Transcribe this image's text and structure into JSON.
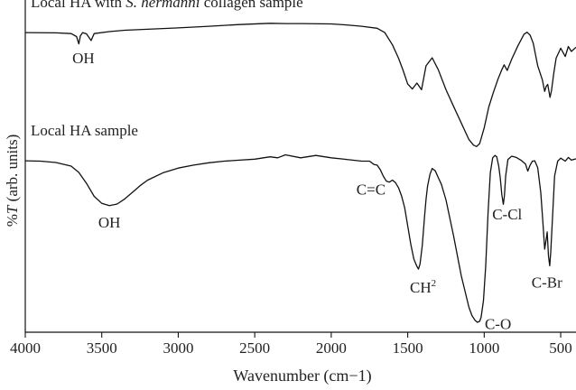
{
  "chart_data": {
    "type": "line",
    "title": "",
    "xlabel": "Wavenumber (cm−1)",
    "ylabel": "%T (arb. units)",
    "ylabel_prefix": "%",
    "ylabel_symbol": "T",
    "ylabel_suffix": " (arb. units)",
    "xlim": [
      4000,
      400
    ],
    "x_reversed": true,
    "x_ticks": [
      4000,
      3500,
      3000,
      2500,
      2000,
      1500,
      1000,
      500
    ],
    "y_ticks_shown": false,
    "grid": false,
    "ylim": [
      0,
      100
    ],
    "series": [
      {
        "name": "Local HA with S. hermanni collagen sample",
        "name_prefix": "Local HA with ",
        "name_italic": "S. hermanni",
        "name_suffix": " collagen sample",
        "x": [
          4000,
          3800,
          3700,
          3665,
          3650,
          3640,
          3625,
          3600,
          3570,
          3550,
          3450,
          3350,
          3200,
          3000,
          2800,
          2600,
          2400,
          2300,
          2200,
          2000,
          1900,
          1800,
          1700,
          1650,
          1600,
          1560,
          1530,
          1500,
          1470,
          1440,
          1410,
          1380,
          1340,
          1300,
          1250,
          1200,
          1150,
          1100,
          1070,
          1050,
          1030,
          1000,
          970,
          940,
          910,
          885,
          870,
          850,
          820,
          780,
          740,
          720,
          700,
          680,
          650,
          620,
          605,
          595,
          585,
          570,
          560,
          545,
          530,
          500,
          470,
          450,
          430,
          400
        ],
        "y": [
          90.2,
          90.1,
          89.9,
          89.0,
          86.8,
          89.2,
          90.2,
          89.8,
          87.8,
          89.9,
          90.5,
          90.9,
          91.2,
          91.6,
          92.1,
          92.6,
          93.0,
          92.9,
          92.9,
          92.8,
          92.5,
          92.1,
          91.5,
          90.2,
          86.5,
          82.5,
          78.8,
          74.7,
          73.2,
          75.0,
          73.0,
          80.2,
          82.6,
          79.0,
          73.0,
          68.0,
          63.0,
          58.0,
          56.3,
          55.9,
          56.8,
          61.5,
          67.8,
          72.2,
          76.2,
          79.0,
          80.5,
          78.8,
          82.2,
          86.2,
          89.7,
          90.3,
          89.4,
          87.0,
          80.2,
          76.0,
          72.5,
          74.0,
          74.6,
          70.7,
          72.8,
          78.0,
          82.5,
          85.5,
          83.0,
          86.0,
          84.5,
          85.8
        ]
      },
      {
        "name": "Local HA sample",
        "x": [
          4000,
          3900,
          3800,
          3700,
          3650,
          3600,
          3550,
          3500,
          3450,
          3400,
          3350,
          3300,
          3250,
          3200,
          3100,
          3000,
          2900,
          2800,
          2700,
          2600,
          2500,
          2400,
          2350,
          2300,
          2200,
          2100,
          2000,
          1900,
          1800,
          1750,
          1720,
          1700,
          1680,
          1660,
          1640,
          1620,
          1600,
          1580,
          1560,
          1540,
          1520,
          1500,
          1480,
          1460,
          1440,
          1430,
          1420,
          1405,
          1390,
          1380,
          1370,
          1355,
          1340,
          1320,
          1300,
          1280,
          1250,
          1200,
          1150,
          1100,
          1080,
          1060,
          1045,
          1030,
          1020,
          1005,
          990,
          975,
          960,
          945,
          930,
          918,
          905,
          895,
          885,
          875,
          868,
          860,
          845,
          820,
          790,
          760,
          730,
          715,
          700,
          685,
          670,
          650,
          630,
          615,
          605,
          595,
          588,
          580,
          572,
          565,
          555,
          540,
          520,
          500,
          470,
          450,
          430,
          400
        ],
        "y": [
          51.6,
          51.5,
          51.1,
          50.0,
          48.1,
          44.8,
          40.9,
          38.8,
          38.1,
          38.6,
          40.1,
          42.1,
          44.1,
          45.8,
          48.0,
          49.4,
          50.3,
          51.0,
          51.5,
          51.8,
          52.1,
          52.8,
          52.5,
          53.4,
          52.5,
          53.2,
          52.5,
          52.0,
          51.5,
          51.5,
          50.5,
          50.3,
          49.0,
          47.0,
          45.5,
          45.2,
          45.8,
          45.0,
          43.5,
          41.0,
          37.5,
          32.0,
          26.5,
          22.0,
          19.8,
          19.0,
          20.5,
          26.0,
          35.0,
          40.0,
          44.0,
          47.5,
          49.3,
          48.6,
          46.5,
          44.5,
          39.8,
          29.0,
          17.0,
          7.5,
          5.0,
          3.6,
          3.0,
          3.3,
          4.5,
          9.5,
          20.0,
          36.0,
          48.0,
          52.5,
          53.2,
          52.8,
          50.0,
          46.5,
          41.5,
          38.5,
          41.0,
          47.0,
          52.0,
          53.0,
          52.6,
          51.8,
          50.6,
          48.5,
          50.3,
          51.5,
          51.6,
          49.5,
          42.0,
          32.0,
          25.0,
          28.0,
          30.2,
          23.0,
          20.0,
          24.0,
          33.0,
          47.0,
          51.5,
          52.4,
          51.5,
          52.6,
          51.8,
          52.2
        ]
      }
    ],
    "annotations": [
      {
        "text": "OH",
        "x": 3620,
        "y": 81.0,
        "series": 0
      },
      {
        "text": "OH",
        "x": 3450,
        "y": 31.5,
        "series": 1
      },
      {
        "text": "C=C",
        "x": 1740,
        "y": 41.5,
        "series": 1
      },
      {
        "text": "CH",
        "sup": "2",
        "x": 1400,
        "y": 12.0,
        "series": 1
      },
      {
        "text": "C-O",
        "x": 910,
        "y": 1.0,
        "series": 1
      },
      {
        "text": "C-Cl",
        "x": 850,
        "y": 34.0,
        "series": 1
      },
      {
        "text": "C-Br",
        "x": 590,
        "y": 13.5,
        "series": 1
      }
    ]
  }
}
